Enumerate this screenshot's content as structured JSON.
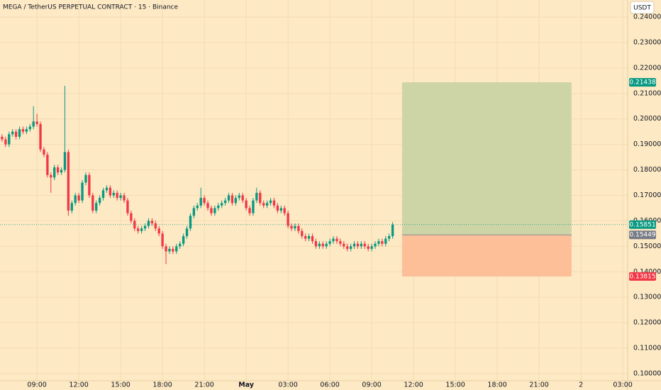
{
  "chart_data": {
    "type": "candlestick",
    "title": "MEGA / TetherUS PERPETUAL CONTRACT · 15 · Binance",
    "currency": "USDT",
    "up_color": "#089981",
    "down_color": "#f23645",
    "open": [
      0.193,
      0.192,
      0.19,
      0.194,
      0.195,
      0.193,
      0.196,
      0.195,
      0.196,
      0.197,
      0.199,
      0.198,
      0.188,
      0.186,
      0.178,
      0.177,
      0.181,
      0.179,
      0.18,
      0.187,
      0.164,
      0.167,
      0.17,
      0.168,
      0.175,
      0.178,
      0.17,
      0.164,
      0.167,
      0.169,
      0.172,
      0.173,
      0.17,
      0.171,
      0.169,
      0.17,
      0.168,
      0.163,
      0.16,
      0.157,
      0.156,
      0.157,
      0.158,
      0.16,
      0.159,
      0.157,
      0.155,
      0.15,
      0.148,
      0.149,
      0.148,
      0.15,
      0.151,
      0.154,
      0.157,
      0.162,
      0.165,
      0.166,
      0.169,
      0.167,
      0.165,
      0.163,
      0.165,
      0.166,
      0.167,
      0.168,
      0.17,
      0.167,
      0.169,
      0.17,
      0.168,
      0.165,
      0.163,
      0.168,
      0.171,
      0.167,
      0.166,
      0.167,
      0.168,
      0.166,
      0.164,
      0.165,
      0.163,
      0.158,
      0.157,
      0.158,
      0.156,
      0.154,
      0.153,
      0.154,
      0.152,
      0.15,
      0.151,
      0.15,
      0.151,
      0.152,
      0.153,
      0.152,
      0.151,
      0.15,
      0.149,
      0.15,
      0.151,
      0.15,
      0.151,
      0.15,
      0.149,
      0.15,
      0.151,
      0.152,
      0.151,
      0.153,
      0.154
    ],
    "high": [
      0.194,
      0.193,
      0.195,
      0.196,
      0.196,
      0.197,
      0.197,
      0.197,
      0.198,
      0.205,
      0.202,
      0.199,
      0.189,
      0.187,
      0.179,
      0.182,
      0.182,
      0.181,
      0.213,
      0.188,
      0.168,
      0.171,
      0.171,
      0.176,
      0.179,
      0.179,
      0.171,
      0.168,
      0.17,
      0.173,
      0.174,
      0.174,
      0.172,
      0.172,
      0.171,
      0.171,
      0.169,
      0.164,
      0.161,
      0.158,
      0.158,
      0.159,
      0.161,
      0.161,
      0.16,
      0.158,
      0.156,
      0.151,
      0.15,
      0.15,
      0.151,
      0.152,
      0.155,
      0.158,
      0.163,
      0.166,
      0.167,
      0.173,
      0.17,
      0.168,
      0.166,
      0.166,
      0.167,
      0.168,
      0.169,
      0.171,
      0.171,
      0.17,
      0.171,
      0.171,
      0.169,
      0.166,
      0.169,
      0.173,
      0.172,
      0.168,
      0.168,
      0.169,
      0.169,
      0.167,
      0.166,
      0.166,
      0.164,
      0.159,
      0.159,
      0.159,
      0.157,
      0.155,
      0.155,
      0.155,
      0.153,
      0.152,
      0.152,
      0.152,
      0.153,
      0.154,
      0.154,
      0.153,
      0.152,
      0.151,
      0.151,
      0.152,
      0.152,
      0.152,
      0.152,
      0.151,
      0.151,
      0.152,
      0.153,
      0.153,
      0.154,
      0.155,
      0.1595
    ],
    "low": [
      0.191,
      0.189,
      0.189,
      0.193,
      0.192,
      0.192,
      0.194,
      0.194,
      0.195,
      0.196,
      0.197,
      0.187,
      0.185,
      0.177,
      0.171,
      0.176,
      0.178,
      0.178,
      0.179,
      0.162,
      0.163,
      0.166,
      0.167,
      0.167,
      0.174,
      0.169,
      0.163,
      0.163,
      0.166,
      0.168,
      0.171,
      0.169,
      0.169,
      0.168,
      0.168,
      0.167,
      0.162,
      0.159,
      0.156,
      0.155,
      0.155,
      0.156,
      0.157,
      0.158,
      0.156,
      0.154,
      0.149,
      0.143,
      0.147,
      0.147,
      0.147,
      0.149,
      0.15,
      0.153,
      0.156,
      0.161,
      0.164,
      0.165,
      0.166,
      0.164,
      0.162,
      0.162,
      0.164,
      0.165,
      0.166,
      0.167,
      0.166,
      0.166,
      0.168,
      0.167,
      0.164,
      0.162,
      0.162,
      0.167,
      0.166,
      0.165,
      0.165,
      0.166,
      0.165,
      0.163,
      0.163,
      0.162,
      0.157,
      0.156,
      0.156,
      0.155,
      0.153,
      0.152,
      0.152,
      0.151,
      0.149,
      0.149,
      0.149,
      0.149,
      0.15,
      0.151,
      0.151,
      0.15,
      0.149,
      0.148,
      0.148,
      0.149,
      0.149,
      0.149,
      0.149,
      0.148,
      0.148,
      0.149,
      0.15,
      0.15,
      0.15,
      0.152,
      0.153
    ],
    "close": [
      0.192,
      0.19,
      0.194,
      0.195,
      0.193,
      0.196,
      0.195,
      0.196,
      0.197,
      0.199,
      0.198,
      0.188,
      0.186,
      0.178,
      0.177,
      0.181,
      0.179,
      0.18,
      0.187,
      0.164,
      0.167,
      0.17,
      0.168,
      0.175,
      0.178,
      0.17,
      0.164,
      0.167,
      0.169,
      0.172,
      0.173,
      0.17,
      0.171,
      0.169,
      0.17,
      0.168,
      0.163,
      0.16,
      0.157,
      0.156,
      0.157,
      0.158,
      0.16,
      0.159,
      0.157,
      0.155,
      0.15,
      0.148,
      0.149,
      0.148,
      0.15,
      0.151,
      0.154,
      0.157,
      0.162,
      0.165,
      0.166,
      0.169,
      0.167,
      0.165,
      0.163,
      0.165,
      0.166,
      0.167,
      0.168,
      0.17,
      0.167,
      0.169,
      0.17,
      0.168,
      0.165,
      0.163,
      0.168,
      0.171,
      0.167,
      0.166,
      0.167,
      0.168,
      0.166,
      0.164,
      0.165,
      0.163,
      0.158,
      0.157,
      0.158,
      0.156,
      0.154,
      0.153,
      0.154,
      0.152,
      0.15,
      0.151,
      0.15,
      0.151,
      0.152,
      0.153,
      0.152,
      0.151,
      0.15,
      0.149,
      0.15,
      0.151,
      0.15,
      0.151,
      0.15,
      0.149,
      0.15,
      0.151,
      0.152,
      0.151,
      0.153,
      0.154,
      0.15851
    ],
    "position": {
      "target": 0.21438,
      "entry": 0.15449,
      "stop": 0.13815,
      "x_start": 114.7,
      "x_end": 163.3,
      "target_color": "#cdd5a6",
      "stop_color": "#fcbf98",
      "target_badge": "#089981",
      "entry_badge": "#787b86",
      "stop_badge": "#f23645"
    },
    "xlim": [
      -0.6,
      179.4
    ],
    "xticks": [
      {
        "value": 10,
        "label": "09:00"
      },
      {
        "value": 22,
        "label": "12:00"
      },
      {
        "value": 34,
        "label": "15:00"
      },
      {
        "value": 46,
        "label": "18:00"
      },
      {
        "value": 58,
        "label": "21:00"
      },
      {
        "value": 70,
        "label": "May"
      },
      {
        "value": 82,
        "label": "03:00"
      },
      {
        "value": 94,
        "label": "06:00"
      },
      {
        "value": 106,
        "label": "09:00"
      },
      {
        "value": 118,
        "label": "12:00"
      },
      {
        "value": 130,
        "label": "15:00"
      },
      {
        "value": 142,
        "label": "18:00"
      },
      {
        "value": 154,
        "label": "21:00"
      },
      {
        "value": 166,
        "label": "2"
      },
      {
        "value": 178,
        "label": "03:00"
      }
    ],
    "ylim": [
      0.0972,
      0.2467
    ],
    "yticks": [
      {
        "value": 0.1,
        "label": "0.10000"
      },
      {
        "value": 0.11,
        "label": "0.11000"
      },
      {
        "value": 0.12,
        "label": "0.12000"
      },
      {
        "value": 0.13,
        "label": "0.13000"
      },
      {
        "value": 0.14,
        "label": "0.14000"
      },
      {
        "value": 0.15,
        "label": "0.15000"
      },
      {
        "value": 0.16,
        "label": "0.16000"
      },
      {
        "value": 0.17,
        "label": "0.17000"
      },
      {
        "value": 0.18,
        "label": "0.18000"
      },
      {
        "value": 0.19,
        "label": "0.19000"
      },
      {
        "value": 0.2,
        "label": "0.20000"
      },
      {
        "value": 0.21,
        "label": "0.21000"
      },
      {
        "value": 0.22,
        "label": "0.22000"
      },
      {
        "value": 0.23,
        "label": "0.23000"
      },
      {
        "value": 0.24,
        "label": "0.24000"
      }
    ],
    "grid": true
  }
}
